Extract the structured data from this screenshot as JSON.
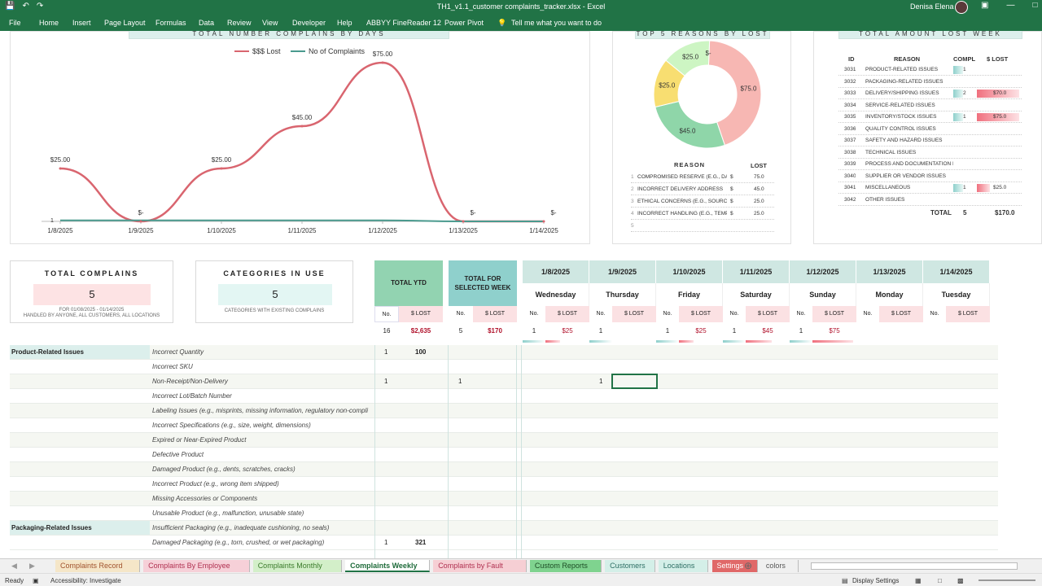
{
  "window": {
    "title": "TH1_v1.1_customer complaints_tracker.xlsx  -  Excel",
    "user": "Denisa Elena"
  },
  "ribbon": [
    "File",
    "Home",
    "Insert",
    "Page Layout",
    "Formulas",
    "Data",
    "Review",
    "View",
    "Developer",
    "Help",
    "ABBYY FineReader 12",
    "Power Pivot",
    "Tell me what you want to do"
  ],
  "colors": {
    "lost": "#d9656f",
    "complaints": "#4a9a8e",
    "header": "#dcefec",
    "ytd": "#92d3b1",
    "week": "#8fd0cc",
    "date": "#cfe7e2"
  },
  "chart_daily": {
    "title": "TOTAL NUMBER COMPLAINS BY DAYS",
    "chart_data": {
      "type": "line",
      "categories": [
        "1/8/2025",
        "1/9/2025",
        "1/10/2025",
        "1/11/2025",
        "1/12/2025",
        "1/13/2025",
        "1/14/2025"
      ],
      "series": [
        {
          "name": "$$$ Lost",
          "values": [
            25,
            0,
            25,
            45,
            75,
            0,
            0
          ],
          "labels": [
            "$25.00",
            "$-",
            "$25.00",
            "$45.00",
            "$75.00",
            "$-",
            "$-"
          ]
        },
        {
          "name": "No of Complaints",
          "values": [
            1,
            1,
            1,
            1,
            1,
            0,
            0
          ],
          "labels": [
            "1",
            "",
            "",
            "",
            "",
            "",
            ""
          ]
        }
      ]
    }
  },
  "chart_reasons": {
    "title": "TOP 5 REASONS BY LOST",
    "chart_data": {
      "type": "pie",
      "labels": [
        "$75.0",
        "$45.0",
        "$25.0",
        "$25.0",
        "$-"
      ],
      "values": [
        75,
        45,
        25,
        25,
        0
      ],
      "colors": [
        "#f7b7b3",
        "#8fd6a9",
        "#f8de71",
        "#cdf5c3",
        "#eeeeee"
      ]
    },
    "table": {
      "headers": [
        "REASON",
        "LOST"
      ],
      "rows": [
        {
          "n": "1",
          "reason": "COMPROMISED RESERVE (E.G., DAM",
          "cur": "$",
          "lost": "75.0"
        },
        {
          "n": "2",
          "reason": "INCORRECT DELIVERY ADDRESS",
          "cur": "$",
          "lost": "45.0"
        },
        {
          "n": "3",
          "reason": "ETHICAL CONCERNS (E.G., SOURCIN",
          "cur": "$",
          "lost": "25.0"
        },
        {
          "n": "4",
          "reason": "INCORRECT HANDLING (E.G., TEMPI",
          "cur": "$",
          "lost": "25.0"
        },
        {
          "n": "5",
          "reason": "",
          "cur": "",
          "lost": ""
        }
      ]
    }
  },
  "lost_week": {
    "title": "TOTAL AMOUNT LOST WEEK",
    "headers": [
      "ID",
      "REASON",
      "COMPL",
      "$ LOST"
    ],
    "rows": [
      {
        "id": "3031",
        "reason": "PRODUCT-RELATED ISSUES",
        "compl": "1",
        "lost": ""
      },
      {
        "id": "3032",
        "reason": "PACKAGING-RELATED ISSUES",
        "compl": "",
        "lost": ""
      },
      {
        "id": "3033",
        "reason": "DELIVERY/SHIPPING ISSUES",
        "compl": "2",
        "lost": "$70.0"
      },
      {
        "id": "3034",
        "reason": "SERVICE-RELATED ISSUES",
        "compl": "",
        "lost": ""
      },
      {
        "id": "3035",
        "reason": "INVENTORY/STOCK ISSUES",
        "compl": "1",
        "lost": "$75.0"
      },
      {
        "id": "3036",
        "reason": "QUALITY CONTROL ISSUES",
        "compl": "",
        "lost": ""
      },
      {
        "id": "3037",
        "reason": "SAFETY AND HAZARD ISSUES",
        "compl": "",
        "lost": ""
      },
      {
        "id": "3038",
        "reason": "TECHNICAL ISSUES",
        "compl": "",
        "lost": ""
      },
      {
        "id": "3039",
        "reason": "PROCESS AND DOCUMENTATION ISS",
        "compl": "",
        "lost": ""
      },
      {
        "id": "3040",
        "reason": "SUPPLIER OR VENDOR ISSUES",
        "compl": "",
        "lost": ""
      },
      {
        "id": "3041",
        "reason": "MISCELLANEOUS",
        "compl": "1",
        "lost": "$25.0"
      },
      {
        "id": "3042",
        "reason": "OTHER ISSUES",
        "compl": "",
        "lost": ""
      }
    ],
    "total": {
      "label": "TOTAL",
      "compl": "5",
      "lost": "$170.0"
    }
  },
  "kpi": {
    "complains": {
      "title": "TOTAL COMPLAINS",
      "value": "5",
      "sub1": "FOR 01/08/2025 - 01/14/2025",
      "sub2": "HANDLED BY ANYONE, ALL CUSTOMERS, ALL LOCATIONS"
    },
    "categories": {
      "title": "CATEGORIES IN USE",
      "value": "5",
      "sub1": "CATEGORIES WITH EXISTING COMPLAINS"
    }
  },
  "summary": {
    "ytd": {
      "title": "TOTAL YTD",
      "no": "16",
      "lost": "$2,635"
    },
    "week": {
      "title": "TOTAL FOR SELECTED WEEK",
      "no": "5",
      "lost": "$170"
    },
    "no_label": "No.",
    "lost_label": "$ LOST"
  },
  "days": [
    {
      "date": "1/8/2025",
      "day": "Wednesday",
      "no": "1",
      "lost": "$25"
    },
    {
      "date": "1/9/2025",
      "day": "Thursday",
      "no": "1",
      "lost": ""
    },
    {
      "date": "1/10/2025",
      "day": "Friday",
      "no": "1",
      "lost": "$25"
    },
    {
      "date": "1/11/2025",
      "day": "Saturday",
      "no": "1",
      "lost": "$45"
    },
    {
      "date": "1/12/2025",
      "day": "Sunday",
      "no": "1",
      "lost": "$75"
    },
    {
      "date": "1/13/2025",
      "day": "Monday",
      "no": "",
      "lost": ""
    },
    {
      "date": "1/14/2025",
      "day": "Tuesday",
      "no": "",
      "lost": ""
    }
  ],
  "rows": [
    {
      "cat": "Product-Related Issues",
      "sub": "Incorrect Quantity",
      "ytd_no": "1",
      "ytd_lost": "100",
      "wk_no": "",
      "thu": ""
    },
    {
      "cat": "",
      "sub": "Incorrect SKU",
      "ytd_no": "",
      "ytd_lost": "",
      "wk_no": "",
      "thu": ""
    },
    {
      "cat": "",
      "sub": "Non-Receipt/Non-Delivery",
      "ytd_no": "1",
      "ytd_lost": "",
      "wk_no": "1",
      "thu": "1"
    },
    {
      "cat": "",
      "sub": "Incorrect Lot/Batch Number",
      "ytd_no": "",
      "ytd_lost": "",
      "wk_no": "",
      "thu": ""
    },
    {
      "cat": "",
      "sub": "Labeling Issues (e.g., misprints, missing information, regulatory non-compli",
      "ytd_no": "",
      "ytd_lost": "",
      "wk_no": "",
      "thu": ""
    },
    {
      "cat": "",
      "sub": "Incorrect Specifications (e.g., size, weight, dimensions)",
      "ytd_no": "",
      "ytd_lost": "",
      "wk_no": "",
      "thu": ""
    },
    {
      "cat": "",
      "sub": "Expired or Near-Expired Product",
      "ytd_no": "",
      "ytd_lost": "",
      "wk_no": "",
      "thu": ""
    },
    {
      "cat": "",
      "sub": "Defective Product",
      "ytd_no": "",
      "ytd_lost": "",
      "wk_no": "",
      "thu": ""
    },
    {
      "cat": "",
      "sub": "Damaged Product (e.g., dents, scratches, cracks)",
      "ytd_no": "",
      "ytd_lost": "",
      "wk_no": "",
      "thu": ""
    },
    {
      "cat": "",
      "sub": "Incorrect Product (e.g., wrong item shipped)",
      "ytd_no": "",
      "ytd_lost": "",
      "wk_no": "",
      "thu": ""
    },
    {
      "cat": "",
      "sub": "Missing Accessories or Components",
      "ytd_no": "",
      "ytd_lost": "",
      "wk_no": "",
      "thu": ""
    },
    {
      "cat": "",
      "sub": "Unusable Product (e.g., malfunction, unusable state)",
      "ytd_no": "",
      "ytd_lost": "",
      "wk_no": "",
      "thu": ""
    },
    {
      "cat": "Packaging-Related Issues",
      "sub": "Insufficient Packaging (e.g., inadequate cushioning, no seals)",
      "ytd_no": "",
      "ytd_lost": "",
      "wk_no": "",
      "thu": ""
    },
    {
      "cat": "",
      "sub": "Damaged Packaging (e.g., torn, crushed, or wet packaging)",
      "ytd_no": "1",
      "ytd_lost": "321",
      "wk_no": "",
      "thu": ""
    }
  ],
  "sheet_tabs": [
    {
      "label": "Complaints Record",
      "bg": "#f5e6c8",
      "fg": "#a0522d"
    },
    {
      "label": "Complaints By Employee",
      "bg": "#f6d0d8",
      "fg": "#b03050"
    },
    {
      "label": "Complaints Monthly",
      "bg": "#d3efc9",
      "fg": "#3a7a2a"
    },
    {
      "label": "Complaints Weekly",
      "bg": "#ffffff",
      "fg": "#1e6b3a"
    },
    {
      "label": "Complaints by Fault",
      "bg": "#f6cfd4",
      "fg": "#b03050"
    },
    {
      "label": "Custom Reports",
      "bg": "#7fd38f",
      "fg": "#1d4d25"
    },
    {
      "label": "Customers",
      "bg": "#d4efe8",
      "fg": "#2d6e64"
    },
    {
      "label": "Locations",
      "bg": "#d4efe8",
      "fg": "#2d6e64"
    },
    {
      "label": "Settings",
      "bg": "#e06868",
      "fg": "#ffffff"
    },
    {
      "label": "colors",
      "bg": "#f0f0f0",
      "fg": "#555555"
    }
  ],
  "status": {
    "ready": "Ready",
    "accessibility": "Accessibility: Investigate",
    "display": "Display Settings"
  }
}
